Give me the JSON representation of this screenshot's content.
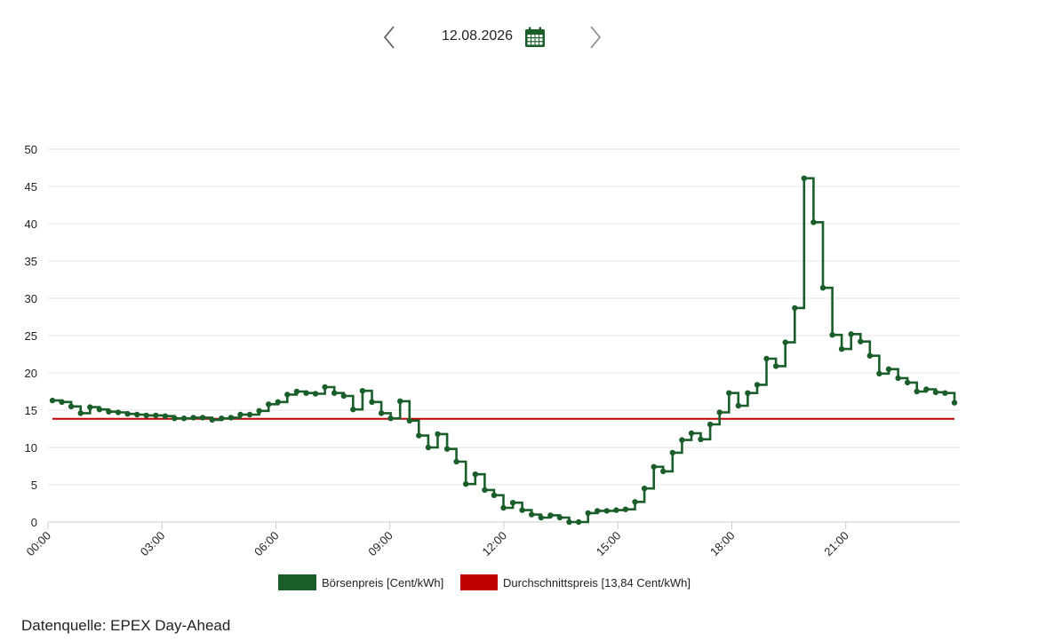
{
  "date_nav": {
    "date": "12.08.2026",
    "prev_icon": "chevron-left-icon",
    "next_icon": "chevron-right-icon",
    "calendar_icon": "calendar-icon"
  },
  "colors": {
    "price": "#1a5e2a",
    "average": "#c00000",
    "grid": "#e6e6e6",
    "axis": "#cccccc"
  },
  "chart_data": {
    "type": "line",
    "step": true,
    "interval_minutes": 15,
    "ylim": [
      0,
      50
    ],
    "yticks": [
      0,
      5,
      10,
      15,
      20,
      25,
      30,
      35,
      40,
      45,
      50
    ],
    "xticks": [
      "00:00",
      "03:00",
      "06:00",
      "09:00",
      "12:00",
      "15:00",
      "18:00",
      "21:00"
    ],
    "grid": true,
    "legend_position": "bottom",
    "series": [
      {
        "name": "Börsenpreis [Cent/kWh]",
        "values": [
          16.3,
          16.1,
          15.5,
          14.6,
          15.4,
          15.1,
          14.8,
          14.7,
          14.5,
          14.4,
          14.3,
          14.3,
          14.2,
          13.9,
          13.9,
          14.0,
          14.0,
          13.7,
          13.9,
          14.0,
          14.4,
          14.4,
          14.9,
          15.8,
          16.1,
          17.1,
          17.5,
          17.3,
          17.2,
          18.1,
          17.3,
          16.9,
          15.1,
          17.6,
          16.1,
          14.6,
          13.9,
          16.2,
          13.6,
          11.6,
          10.0,
          11.8,
          9.8,
          8.1,
          5.1,
          6.4,
          4.3,
          3.6,
          1.9,
          2.6,
          1.6,
          1.0,
          0.6,
          0.9,
          0.6,
          0.0,
          0.0,
          1.2,
          1.5,
          1.5,
          1.6,
          1.7,
          2.7,
          4.5,
          7.4,
          6.8,
          9.3,
          11.0,
          11.9,
          11.1,
          13.1,
          14.7,
          17.3,
          15.6,
          17.3,
          18.4,
          21.9,
          20.9,
          24.1,
          28.7,
          46.1,
          40.2,
          31.4,
          25.1,
          23.2,
          25.2,
          24.2,
          22.3,
          19.9,
          20.5,
          19.3,
          18.7,
          17.5,
          17.8,
          17.4,
          17.3,
          16.0
        ]
      },
      {
        "name": "Durchschnittspreis [13,84 Cent/kWh]",
        "constant": 13.84
      }
    ]
  },
  "footer": {
    "source": "Datenquelle: EPEX Day-Ahead"
  }
}
